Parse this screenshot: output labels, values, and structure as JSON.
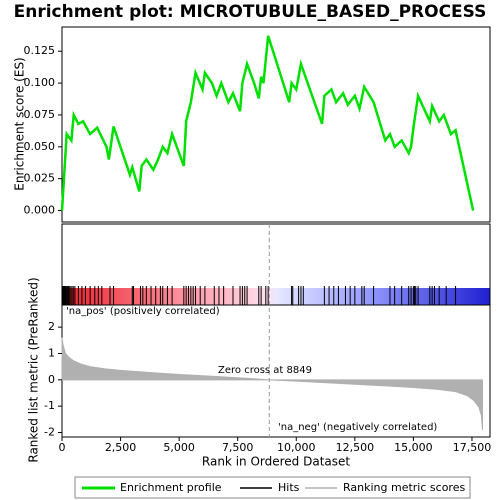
{
  "chart_data": [
    {
      "type": "line",
      "title": "Enrichment plot: MICROTUBULE_BASED_PROCESS",
      "y_label": "Enrichment score (ES)",
      "x": [
        0,
        100,
        200,
        400,
        500,
        700,
        900,
        1200,
        1500,
        1900,
        2000,
        2200,
        2900,
        3000,
        3300,
        3400,
        3600,
        3900,
        4100,
        4300,
        4500,
        4700,
        5000,
        5200,
        5300,
        5500,
        5700,
        6000,
        6100,
        6400,
        6600,
        6800,
        7100,
        7300,
        7600,
        7700,
        7900,
        8200,
        8400,
        8500,
        8600,
        8800,
        9700,
        9800,
        10000,
        10200,
        11100,
        11200,
        11500,
        11700,
        12000,
        12200,
        12500,
        12700,
        12900,
        13300,
        13800,
        14000,
        14200,
        14500,
        14800,
        14900,
        15000,
        15200,
        15700,
        15800,
        16100,
        16300,
        16600,
        16800,
        17550
      ],
      "series": [
        {
          "name": "Enrichment profile",
          "color": "#00e000",
          "values": [
            0,
            0.03,
            0.06,
            0.055,
            0.075,
            0.068,
            0.07,
            0.06,
            0.065,
            0.05,
            0.04,
            0.066,
            0.028,
            0.034,
            0.015,
            0.035,
            0.04,
            0.032,
            0.04,
            0.05,
            0.045,
            0.06,
            0.045,
            0.035,
            0.07,
            0.085,
            0.108,
            0.095,
            0.108,
            0.1,
            0.09,
            0.1,
            0.085,
            0.092,
            0.078,
            0.1,
            0.115,
            0.1,
            0.088,
            0.105,
            0.1,
            0.137,
            0.085,
            0.1,
            0.095,
            0.115,
            0.068,
            0.09,
            0.095,
            0.085,
            0.092,
            0.083,
            0.09,
            0.08,
            0.097,
            0.085,
            0.055,
            0.06,
            0.05,
            0.055,
            0.045,
            0.05,
            0.065,
            0.09,
            0.07,
            0.082,
            0.07,
            0.075,
            0.06,
            0.063,
            0
          ]
        }
      ],
      "xlim": [
        0,
        18270
      ],
      "ylim": [
        -0.009,
        0.144
      ],
      "yticks": [
        {
          "value": 0,
          "label": "0.000"
        },
        {
          "value": 0.025,
          "label": "0.025"
        },
        {
          "value": 0.05,
          "label": "0.050"
        },
        {
          "value": 0.075,
          "label": "0.075"
        },
        {
          "value": 0.1,
          "label": "0.100"
        },
        {
          "value": 0.125,
          "label": "0.125"
        }
      ]
    },
    {
      "type": "rug",
      "series": [
        {
          "name": "Hits",
          "color": "#000000",
          "values": [
            30,
            60,
            90,
            120,
            150,
            180,
            220,
            260,
            300,
            350,
            420,
            480,
            550,
            700,
            850,
            1000,
            1200,
            1400,
            1550,
            1700,
            2050,
            2200,
            3000,
            3050,
            3350,
            3450,
            3600,
            3800,
            4000,
            4200,
            4300,
            4500,
            4700,
            5200,
            5300,
            5400,
            5500,
            5600,
            5700,
            5900,
            6100,
            6500,
            6700,
            6900,
            7300,
            7600,
            7700,
            7800,
            7900,
            8400,
            8500,
            8700,
            8800,
            9800,
            9850,
            10100,
            10200,
            10300,
            11200,
            11400,
            11600,
            11800,
            12100,
            12300,
            12500,
            12800,
            12900,
            13300,
            14000,
            14200,
            14500,
            14800,
            14900,
            15000,
            15050,
            15100,
            15200,
            15700,
            15800,
            15900,
            16100,
            16400,
            16800
          ]
        }
      ],
      "xlim": [
        0,
        18270
      ]
    },
    {
      "type": "area",
      "x_label": "Rank in Ordered Dataset",
      "y_label": "Ranked list metric (PreRanked)",
      "x": [
        0,
        50,
        150,
        300,
        500,
        800,
        1200,
        1800,
        2500,
        3500,
        5000,
        6500,
        8000,
        8849,
        10000,
        11500,
        12500,
        14000,
        15000,
        16000,
        16800,
        17300,
        17600,
        17800,
        17900,
        17950
      ],
      "series": [
        {
          "name": "Ranking metric scores",
          "color": "#b0b0b0",
          "values": [
            1.6,
            1.3,
            1.0,
            0.85,
            0.72,
            0.6,
            0.5,
            0.42,
            0.36,
            0.29,
            0.2,
            0.13,
            0.05,
            0,
            -0.05,
            -0.12,
            -0.17,
            -0.24,
            -0.29,
            -0.36,
            -0.45,
            -0.6,
            -0.8,
            -1.05,
            -1.35,
            -1.9
          ]
        }
      ],
      "annotations": [
        "'na_pos' (positively correlated)",
        "Zero cross at 8849",
        "'na_neg' (negatively correlated)"
      ],
      "xlim": [
        0,
        18270
      ],
      "ylim": [
        -2.17,
        2.84
      ],
      "yticks": [
        -2,
        -1,
        0,
        1,
        2
      ],
      "xticks": [
        0,
        {
          "value": 2500,
          "label": "2,500"
        },
        {
          "value": 5000,
          "label": "5,000"
        },
        {
          "value": 7500,
          "label": "7,500"
        },
        {
          "value": 10000,
          "label": "10,000"
        },
        {
          "value": 12500,
          "label": "12,500"
        },
        {
          "value": 15000,
          "label": "15,000"
        },
        {
          "value": 17500,
          "label": "17,500"
        }
      ]
    }
  ]
}
